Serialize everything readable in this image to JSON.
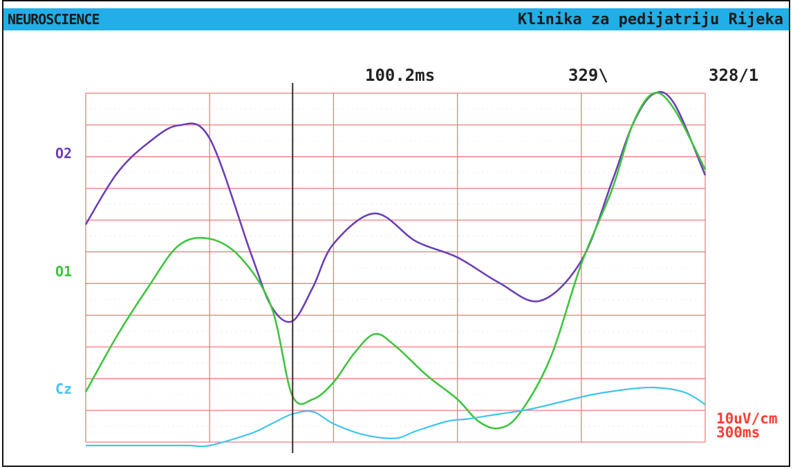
{
  "header": {
    "app_title": "NEUROSCIENCE",
    "institution": "Klinika za pedijatriju Rijeka"
  },
  "readouts": {
    "latency": "100.2ms",
    "marker_1": "329\\",
    "marker_2": "328/1"
  },
  "scale": {
    "amplitude": "10uV/cm",
    "time": "300ms"
  },
  "colors": {
    "titlebar": "#22aee6",
    "grid": "#f07a7a",
    "cursor": "#3a2a2a",
    "o2": "#6a3fb5",
    "o1": "#3ec43e",
    "cz": "#3cc4ee",
    "scale_text": "#ff3b2f"
  },
  "chart_data": {
    "type": "line",
    "title": "",
    "xlabel": "",
    "ylabel": "",
    "x_range_ms": [
      0,
      300
    ],
    "grid": true,
    "cursor_ms": 100.2,
    "series": [
      {
        "name": "O2",
        "color": "#6a3fb5",
        "x": [
          0,
          15,
          30,
          45,
          60,
          80,
          90,
          100,
          110,
          120,
          140,
          160,
          180,
          200,
          220,
          240,
          255,
          265,
          275,
          285,
          300
        ],
        "y": [
          20.0,
          30.5,
          36.8,
          40.5,
          37.8,
          14.0,
          3.0,
          0.0,
          7.0,
          16.0,
          22.3,
          16.5,
          13.2,
          8.0,
          4.2,
          12.5,
          29.0,
          40.8,
          47.0,
          45.0,
          30.2
        ]
      },
      {
        "name": "O1",
        "color": "#3ec43e",
        "x": [
          0,
          15,
          30,
          45,
          60,
          75,
          90,
          100,
          110,
          120,
          130,
          140,
          150,
          165,
          180,
          190,
          200,
          210,
          225,
          240,
          255,
          265,
          275,
          285,
          300
        ],
        "y": [
          1.5,
          13.0,
          23.0,
          31.8,
          33.2,
          29.3,
          19.0,
          0.8,
          0.0,
          3.5,
          9.5,
          13.5,
          11.0,
          5.0,
          0.0,
          -4.5,
          -6.0,
          -3.0,
          8.5,
          28.0,
          43.5,
          57.0,
          64.0,
          60.0,
          47.5
        ]
      },
      {
        "name": "Cz",
        "color": "#3cc4ee",
        "x": [
          0,
          20,
          40,
          50,
          60,
          80,
          90,
          100,
          110,
          120,
          135,
          150,
          160,
          175,
          185,
          200,
          215,
          230,
          245,
          260,
          275,
          290,
          300
        ],
        "y": [
          -10.0,
          -10.7,
          -10.2,
          -9.5,
          -8.0,
          -4.5,
          -2.5,
          -0.5,
          0.0,
          -2.5,
          -4.8,
          -5.5,
          -4.0,
          -2.0,
          -1.5,
          -0.5,
          0.5,
          2.0,
          3.5,
          4.5,
          5.0,
          4.0,
          1.5
        ]
      }
    ]
  }
}
